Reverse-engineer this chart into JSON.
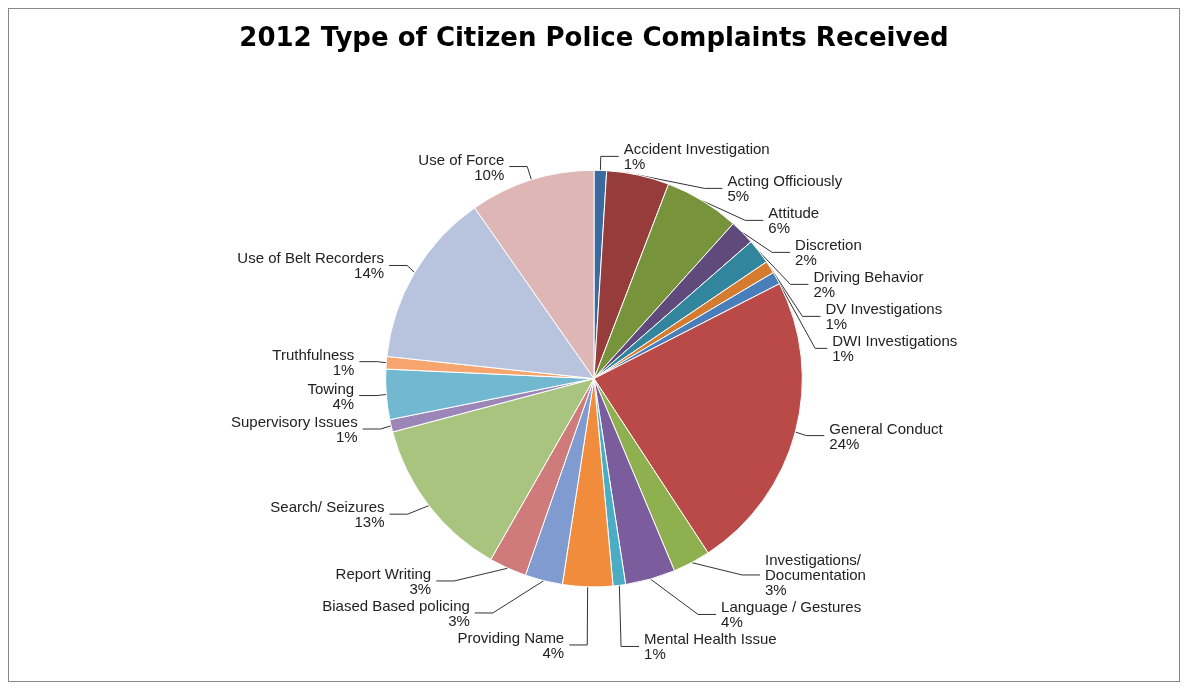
{
  "chart_data": {
    "type": "pie",
    "title": "2012 Type of Citizen Police Complaints Received",
    "categories": [
      "Accident Investigation",
      "Acting Officiously",
      "Attitude",
      "Discretion",
      "Driving Behavior",
      "DV Investigations",
      "DWI Investigations",
      "General Conduct",
      "Investigations/ Documentation",
      "Language / Gestures",
      "Mental Health Issue",
      "Providing Name",
      "Biased Based policing",
      "Report Writing",
      "Search/ Seizures",
      "Supervisory Issues",
      "Towing",
      "Truthfulness",
      "Use of Belt Recorders",
      "Use of Force"
    ],
    "values": [
      1,
      5,
      6,
      2,
      2,
      1,
      1,
      24,
      3,
      4,
      1,
      4,
      3,
      3,
      13,
      1,
      4,
      1,
      14,
      10
    ],
    "value_labels": [
      "1%",
      "5%",
      "6%",
      "2%",
      "2%",
      "1%",
      "1%",
      "24%",
      "3%",
      "4%",
      "1%",
      "4%",
      "3%",
      "3%",
      "13%",
      "1%",
      "4%",
      "1%",
      "14%",
      "10%"
    ],
    "colors": [
      "#3b6aa0",
      "#963c3b",
      "#77933c",
      "#604a7b",
      "#31859c",
      "#d47b2f",
      "#4a7ebb",
      "#b94a48",
      "#8fb04f",
      "#7b5c9c",
      "#4bacc6",
      "#f08c3c",
      "#7f9bcf",
      "#d07b7b",
      "#a8c47e",
      "#9c86b8",
      "#72b8d0",
      "#f7a56e",
      "#b8c4de",
      "#deb6b6"
    ],
    "legend": false
  }
}
